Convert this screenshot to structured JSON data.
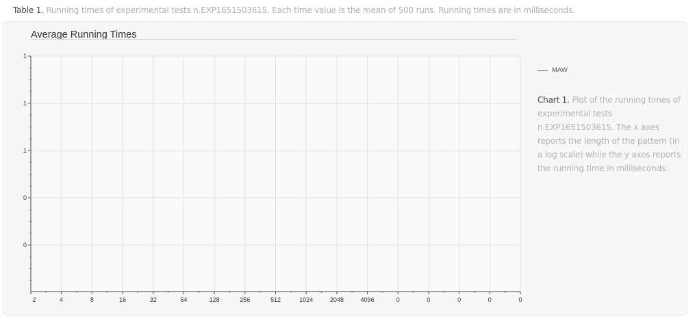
{
  "table_caption": {
    "lead": "Table 1.",
    "text": "Running times of experimental tests n.EXP1651503615. Each time value is the mean of 500 runs. Running times are in milliseconds."
  },
  "chart_caption": {
    "lead": "Chart 1.",
    "text": "Plot of the running times of experimental tests n.EXP1651503615. The x axes reports the length of the pattern (in a log scale) while the y axes reports the running time in milliseconds."
  },
  "legend": {
    "label": "MAW",
    "color": "#a6a89a"
  },
  "chart_data": {
    "type": "line",
    "title": "Average Running Times",
    "xlabel": "",
    "ylabel": "",
    "x_ticks": [
      "2",
      "4",
      "8",
      "16",
      "32",
      "64",
      "128",
      "256",
      "512",
      "1024",
      "2048",
      "4096",
      "0",
      "0",
      "0",
      "0",
      "0"
    ],
    "y_ticks": [
      "1",
      "1",
      "1",
      "0",
      "0"
    ],
    "series": [
      {
        "name": "MAW",
        "values": []
      }
    ],
    "grid": true,
    "legend_position": "right"
  }
}
